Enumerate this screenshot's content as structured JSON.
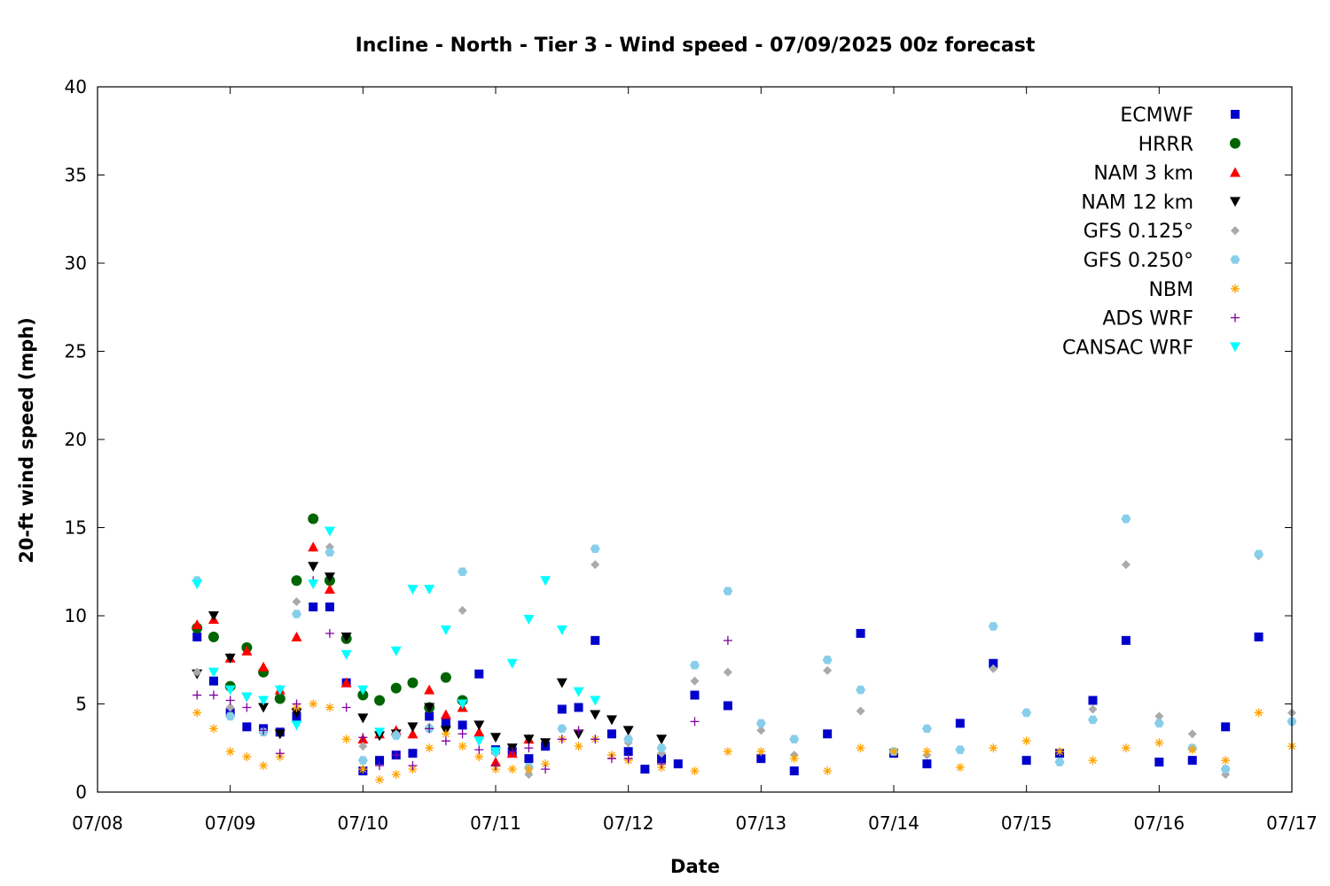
{
  "chart_data": {
    "type": "scatter",
    "title": "Incline - North - Tier 3 - Wind speed - 07/09/2025 00z forecast",
    "xlabel": "Date",
    "ylabel": "20-ft wind speed (mph)",
    "x_ticks": [
      "07/08",
      "07/09",
      "07/10",
      "07/11",
      "07/12",
      "07/13",
      "07/14",
      "07/15",
      "07/16",
      "07/17"
    ],
    "x_range": [
      "07/08",
      "07/17"
    ],
    "x_unit": "days",
    "ylim": [
      0,
      40
    ],
    "y_ticks": [
      0,
      5,
      10,
      15,
      20,
      25,
      30,
      35,
      40
    ],
    "grid": false,
    "legend_position": "top-right",
    "series": [
      {
        "name": "ECMWF",
        "marker": "square",
        "color": "#0000cc",
        "x": [
          "07/08 18:00",
          "07/08 21:00",
          "07/09 00:00",
          "07/09 03:00",
          "07/09 06:00",
          "07/09 09:00",
          "07/09 12:00",
          "07/09 15:00",
          "07/09 18:00",
          "07/09 21:00",
          "07/10 00:00",
          "07/10 03:00",
          "07/10 06:00",
          "07/10 09:00",
          "07/10 12:00",
          "07/10 15:00",
          "07/10 18:00",
          "07/10 21:00",
          "07/11 00:00",
          "07/11 03:00",
          "07/11 06:00",
          "07/11 09:00",
          "07/11 12:00",
          "07/11 15:00",
          "07/11 18:00",
          "07/11 21:00",
          "07/12 00:00",
          "07/12 03:00",
          "07/12 06:00",
          "07/12 09:00",
          "07/12 12:00",
          "07/12 18:00",
          "07/13 00:00",
          "07/13 06:00",
          "07/13 12:00",
          "07/13 18:00",
          "07/14 00:00",
          "07/14 06:00",
          "07/14 12:00",
          "07/14 18:00",
          "07/15 00:00",
          "07/15 06:00",
          "07/15 12:00",
          "07/15 18:00",
          "07/16 00:00",
          "07/16 06:00",
          "07/16 12:00",
          "07/16 18:00"
        ],
        "y": [
          8.8,
          6.3,
          4.5,
          3.7,
          3.6,
          3.4,
          4.3,
          10.5,
          10.5,
          6.2,
          1.2,
          1.8,
          2.1,
          2.2,
          4.3,
          3.9,
          3.8,
          6.7,
          2.4,
          2.3,
          1.9,
          2.6,
          4.7,
          4.8,
          8.6,
          3.3,
          2.3,
          1.3,
          1.9,
          1.6,
          5.5,
          4.9,
          1.9,
          1.2,
          3.3,
          9.0,
          2.2,
          1.6,
          3.9,
          7.3,
          1.8,
          2.2,
          5.2,
          8.6,
          1.7,
          1.8,
          3.7,
          8.8
        ]
      },
      {
        "name": "HRRR",
        "marker": "circle",
        "color": "#006400",
        "x": [
          "07/08 18:00",
          "07/08 21:00",
          "07/09 00:00",
          "07/09 03:00",
          "07/09 06:00",
          "07/09 09:00",
          "07/09 12:00",
          "07/09 15:00",
          "07/09 18:00",
          "07/09 21:00",
          "07/10 00:00",
          "07/10 03:00",
          "07/10 06:00",
          "07/10 09:00",
          "07/10 12:00",
          "07/10 15:00",
          "07/10 18:00"
        ],
        "y": [
          9.3,
          8.8,
          6.0,
          8.2,
          6.8,
          5.3,
          12.0,
          15.5,
          12.0,
          8.7,
          5.5,
          5.2,
          5.9,
          6.2,
          4.8,
          6.5,
          5.2
        ]
      },
      {
        "name": "NAM 3 km",
        "marker": "triangle-up",
        "color": "#ff0000",
        "x": [
          "07/08 18:00",
          "07/08 21:00",
          "07/09 00:00",
          "07/09 03:00",
          "07/09 06:00",
          "07/09 09:00",
          "07/09 12:00",
          "07/09 15:00",
          "07/09 18:00",
          "07/09 21:00",
          "07/10 00:00",
          "07/10 03:00",
          "07/10 06:00",
          "07/10 09:00",
          "07/10 12:00",
          "07/10 15:00",
          "07/10 18:00",
          "07/10 21:00",
          "07/11 00:00",
          "07/11 03:00",
          "07/11 06:00"
        ],
        "y": [
          9.5,
          9.8,
          7.6,
          8.0,
          7.1,
          5.8,
          8.8,
          13.9,
          11.5,
          6.2,
          3.0,
          3.3,
          3.5,
          3.3,
          5.8,
          4.4,
          4.8,
          3.4,
          1.7,
          2.2,
          3.0
        ]
      },
      {
        "name": "NAM 12 km",
        "marker": "triangle-down",
        "color": "#000000",
        "x": [
          "07/08 18:00",
          "07/08 21:00",
          "07/09 00:00",
          "07/09 03:00",
          "07/09 06:00",
          "07/09 09:00",
          "07/09 12:00",
          "07/09 15:00",
          "07/09 18:00",
          "07/09 21:00",
          "07/10 00:00",
          "07/10 03:00",
          "07/10 06:00",
          "07/10 09:00",
          "07/10 12:00",
          "07/10 15:00",
          "07/10 18:00",
          "07/10 21:00",
          "07/11 00:00",
          "07/11 03:00",
          "07/11 06:00",
          "07/11 09:00",
          "07/11 12:00",
          "07/11 15:00",
          "07/11 18:00",
          "07/11 21:00",
          "07/12 00:00",
          "07/12 06:00"
        ],
        "y": [
          6.7,
          10.0,
          7.6,
          5.4,
          4.8,
          3.3,
          4.5,
          12.8,
          12.2,
          8.8,
          4.2,
          3.2,
          3.3,
          3.7,
          4.8,
          3.5,
          5.0,
          3.8,
          3.1,
          2.5,
          3.0,
          2.8,
          6.2,
          3.3,
          4.4,
          4.1,
          3.5,
          3.0
        ]
      },
      {
        "name": "GFS 0.125°",
        "marker": "diamond",
        "color": "#aaaaaa",
        "x": [
          "07/08 18:00",
          "07/09 00:00",
          "07/09 06:00",
          "07/09 12:00",
          "07/09 18:00",
          "07/10 00:00",
          "07/10 06:00",
          "07/10 12:00",
          "07/10 18:00",
          "07/11 00:00",
          "07/11 06:00",
          "07/11 12:00",
          "07/11 18:00",
          "07/12 00:00",
          "07/12 06:00",
          "07/12 12:00",
          "07/12 18:00",
          "07/13 00:00",
          "07/13 06:00",
          "07/13 12:00",
          "07/13 18:00",
          "07/14 00:00",
          "07/14 06:00",
          "07/14 12:00",
          "07/14 18:00",
          "07/15 00:00",
          "07/15 06:00",
          "07/15 12:00",
          "07/15 18:00",
          "07/16 00:00",
          "07/16 06:00",
          "07/16 12:00",
          "07/16 18:00",
          "07/17 00:00"
        ],
        "y": [
          6.8,
          4.8,
          3.4,
          10.8,
          13.9,
          2.6,
          3.3,
          3.7,
          10.3,
          2.2,
          1.0,
          3.6,
          12.9,
          2.8,
          2.2,
          6.3,
          6.8,
          3.5,
          2.1,
          6.9,
          4.6,
          2.3,
          2.1,
          2.4,
          7.0,
          4.5,
          1.7,
          4.7,
          12.9,
          4.3,
          3.3,
          1.0,
          13.4,
          4.5
        ]
      },
      {
        "name": "GFS 0.250°",
        "marker": "hexagon",
        "color": "#87ceeb",
        "x": [
          "07/08 18:00",
          "07/09 00:00",
          "07/09 06:00",
          "07/09 12:00",
          "07/09 18:00",
          "07/10 00:00",
          "07/10 06:00",
          "07/10 12:00",
          "07/10 18:00",
          "07/11 00:00",
          "07/11 06:00",
          "07/11 12:00",
          "07/11 18:00",
          "07/12 00:00",
          "07/12 06:00",
          "07/12 12:00",
          "07/12 18:00",
          "07/13 00:00",
          "07/13 06:00",
          "07/13 12:00",
          "07/13 18:00",
          "07/14 00:00",
          "07/14 06:00",
          "07/14 12:00",
          "07/14 18:00",
          "07/15 00:00",
          "07/15 06:00",
          "07/15 12:00",
          "07/15 18:00",
          "07/16 00:00",
          "07/16 06:00",
          "07/16 12:00",
          "07/16 18:00",
          "07/17 00:00"
        ],
        "y": [
          12.0,
          4.3,
          3.4,
          10.1,
          13.6,
          1.8,
          3.2,
          3.6,
          12.5,
          2.3,
          1.4,
          3.6,
          13.8,
          3.0,
          2.5,
          7.2,
          11.4,
          3.9,
          3.0,
          7.5,
          5.8,
          2.3,
          3.6,
          2.4,
          9.4,
          4.5,
          1.7,
          4.1,
          15.5,
          3.9,
          2.5,
          1.3,
          13.5,
          4.0
        ]
      },
      {
        "name": "NBM",
        "marker": "asterisk",
        "color": "#ffa500",
        "x": [
          "07/08 18:00",
          "07/08 21:00",
          "07/09 00:00",
          "07/09 03:00",
          "07/09 06:00",
          "07/09 09:00",
          "07/09 12:00",
          "07/09 15:00",
          "07/09 18:00",
          "07/09 21:00",
          "07/10 00:00",
          "07/10 03:00",
          "07/10 06:00",
          "07/10 09:00",
          "07/10 12:00",
          "07/10 15:00",
          "07/10 18:00",
          "07/10 21:00",
          "07/11 00:00",
          "07/11 03:00",
          "07/11 06:00",
          "07/11 09:00",
          "07/11 12:00",
          "07/11 15:00",
          "07/11 18:00",
          "07/11 21:00",
          "07/12 00:00",
          "07/12 06:00",
          "07/12 12:00",
          "07/12 18:00",
          "07/13 00:00",
          "07/13 06:00",
          "07/13 12:00",
          "07/13 18:00",
          "07/14 00:00",
          "07/14 06:00",
          "07/14 12:00",
          "07/14 18:00",
          "07/15 00:00",
          "07/15 06:00",
          "07/15 12:00",
          "07/15 18:00",
          "07/16 00:00",
          "07/16 06:00",
          "07/16 12:00",
          "07/16 18:00",
          "07/17 00:00"
        ],
        "y": [
          4.5,
          3.6,
          2.3,
          2.0,
          1.5,
          2.0,
          4.8,
          5.0,
          4.8,
          3.0,
          1.3,
          0.7,
          1.0,
          1.3,
          2.5,
          3.3,
          2.6,
          2.0,
          1.3,
          1.3,
          1.3,
          1.6,
          3.0,
          2.6,
          3.0,
          2.1,
          1.8,
          1.4,
          1.2,
          2.3,
          2.3,
          1.9,
          1.2,
          2.5,
          2.3,
          2.3,
          1.4,
          2.5,
          2.9,
          2.3,
          1.8,
          2.5,
          2.8,
          2.4,
          1.8,
          4.5,
          2.6
        ]
      },
      {
        "name": "ADS WRF",
        "marker": "plus",
        "color": "#8000a0",
        "x": [
          "07/08 18:00",
          "07/08 21:00",
          "07/09 00:00",
          "07/09 03:00",
          "07/09 06:00",
          "07/09 09:00",
          "07/09 12:00",
          "07/09 15:00",
          "07/09 18:00",
          "07/09 21:00",
          "07/10 00:00",
          "07/10 03:00",
          "07/10 06:00",
          "07/10 09:00",
          "07/10 12:00",
          "07/10 15:00",
          "07/10 18:00",
          "07/10 21:00",
          "07/11 00:00",
          "07/11 03:00",
          "07/11 06:00",
          "07/11 09:00",
          "07/11 12:00",
          "07/11 15:00",
          "07/11 18:00",
          "07/11 21:00",
          "07/12 00:00",
          "07/12 06:00",
          "07/12 12:00",
          "07/12 18:00"
        ],
        "y": [
          5.5,
          5.5,
          5.2,
          4.8,
          3.5,
          2.2,
          5.0,
          12.0,
          9.0,
          4.8,
          3.1,
          1.5,
          2.1,
          1.5,
          3.6,
          2.9,
          3.3,
          2.4,
          1.5,
          2.3,
          2.5,
          1.3,
          3.0,
          3.5,
          3.0,
          1.9,
          1.9,
          1.6,
          4.0,
          8.6
        ]
      },
      {
        "name": "CANSAC WRF",
        "marker": "triangle-down",
        "color": "#00ffff",
        "x": [
          "07/08 18:00",
          "07/08 21:00",
          "07/09 00:00",
          "07/09 03:00",
          "07/09 06:00",
          "07/09 09:00",
          "07/09 12:00",
          "07/09 15:00",
          "07/09 18:00",
          "07/09 21:00",
          "07/10 00:00",
          "07/10 03:00",
          "07/10 06:00",
          "07/10 09:00",
          "07/10 12:00",
          "07/10 15:00",
          "07/10 18:00",
          "07/10 21:00",
          "07/11 00:00",
          "07/11 03:00",
          "07/11 06:00",
          "07/11 09:00",
          "07/11 12:00",
          "07/11 15:00",
          "07/11 18:00"
        ],
        "y": [
          11.8,
          6.8,
          5.8,
          5.4,
          5.2,
          5.8,
          3.8,
          11.8,
          14.8,
          7.8,
          5.8,
          3.4,
          8.0,
          11.5,
          11.5,
          9.2,
          5.0,
          2.9,
          2.3,
          7.3,
          9.8,
          12.0,
          9.2,
          5.7,
          5.2
        ]
      }
    ]
  }
}
